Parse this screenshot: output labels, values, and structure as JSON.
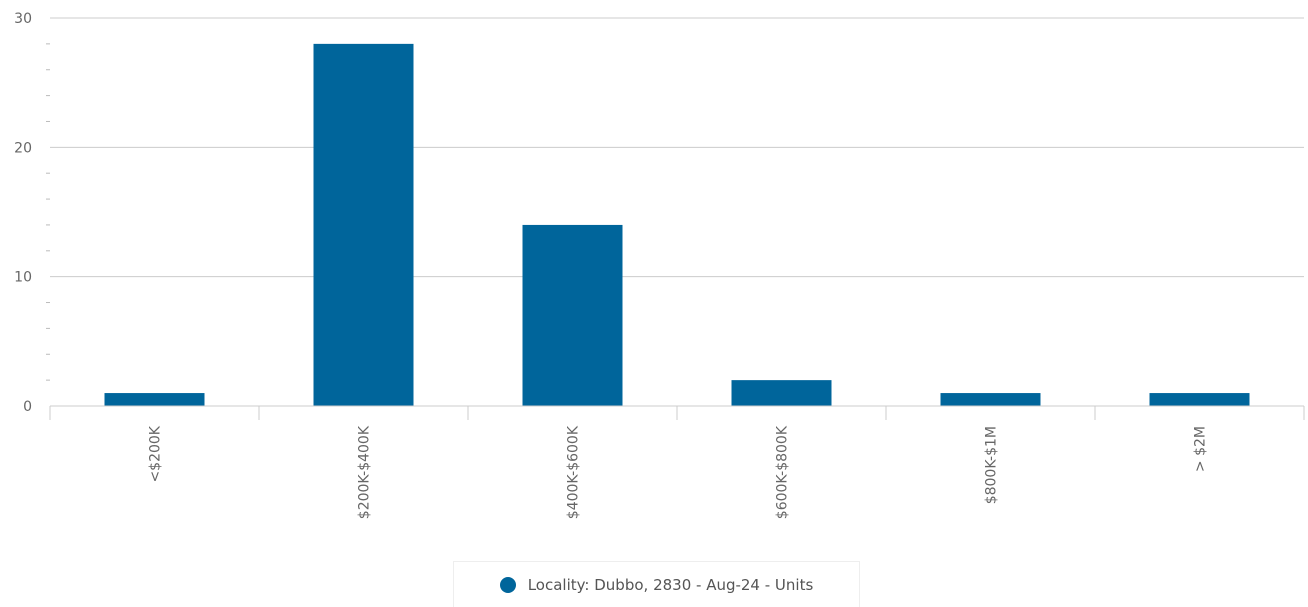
{
  "chart_data": {
    "type": "bar",
    "categories": [
      "<$200K",
      "$200K-$400K",
      "$400K-$600K",
      "$600K-$800K",
      "$800K-$1M",
      "> $2M"
    ],
    "series": [
      {
        "name": "Locality: Dubbo, 2830 - Aug-24 - Units",
        "values": [
          1,
          28,
          14,
          2,
          1,
          1
        ],
        "color": "#00659b"
      }
    ],
    "ylim": [
      0,
      30
    ],
    "yticks": [
      0,
      10,
      20,
      30
    ],
    "grid": true,
    "legend_position": "bottom"
  }
}
